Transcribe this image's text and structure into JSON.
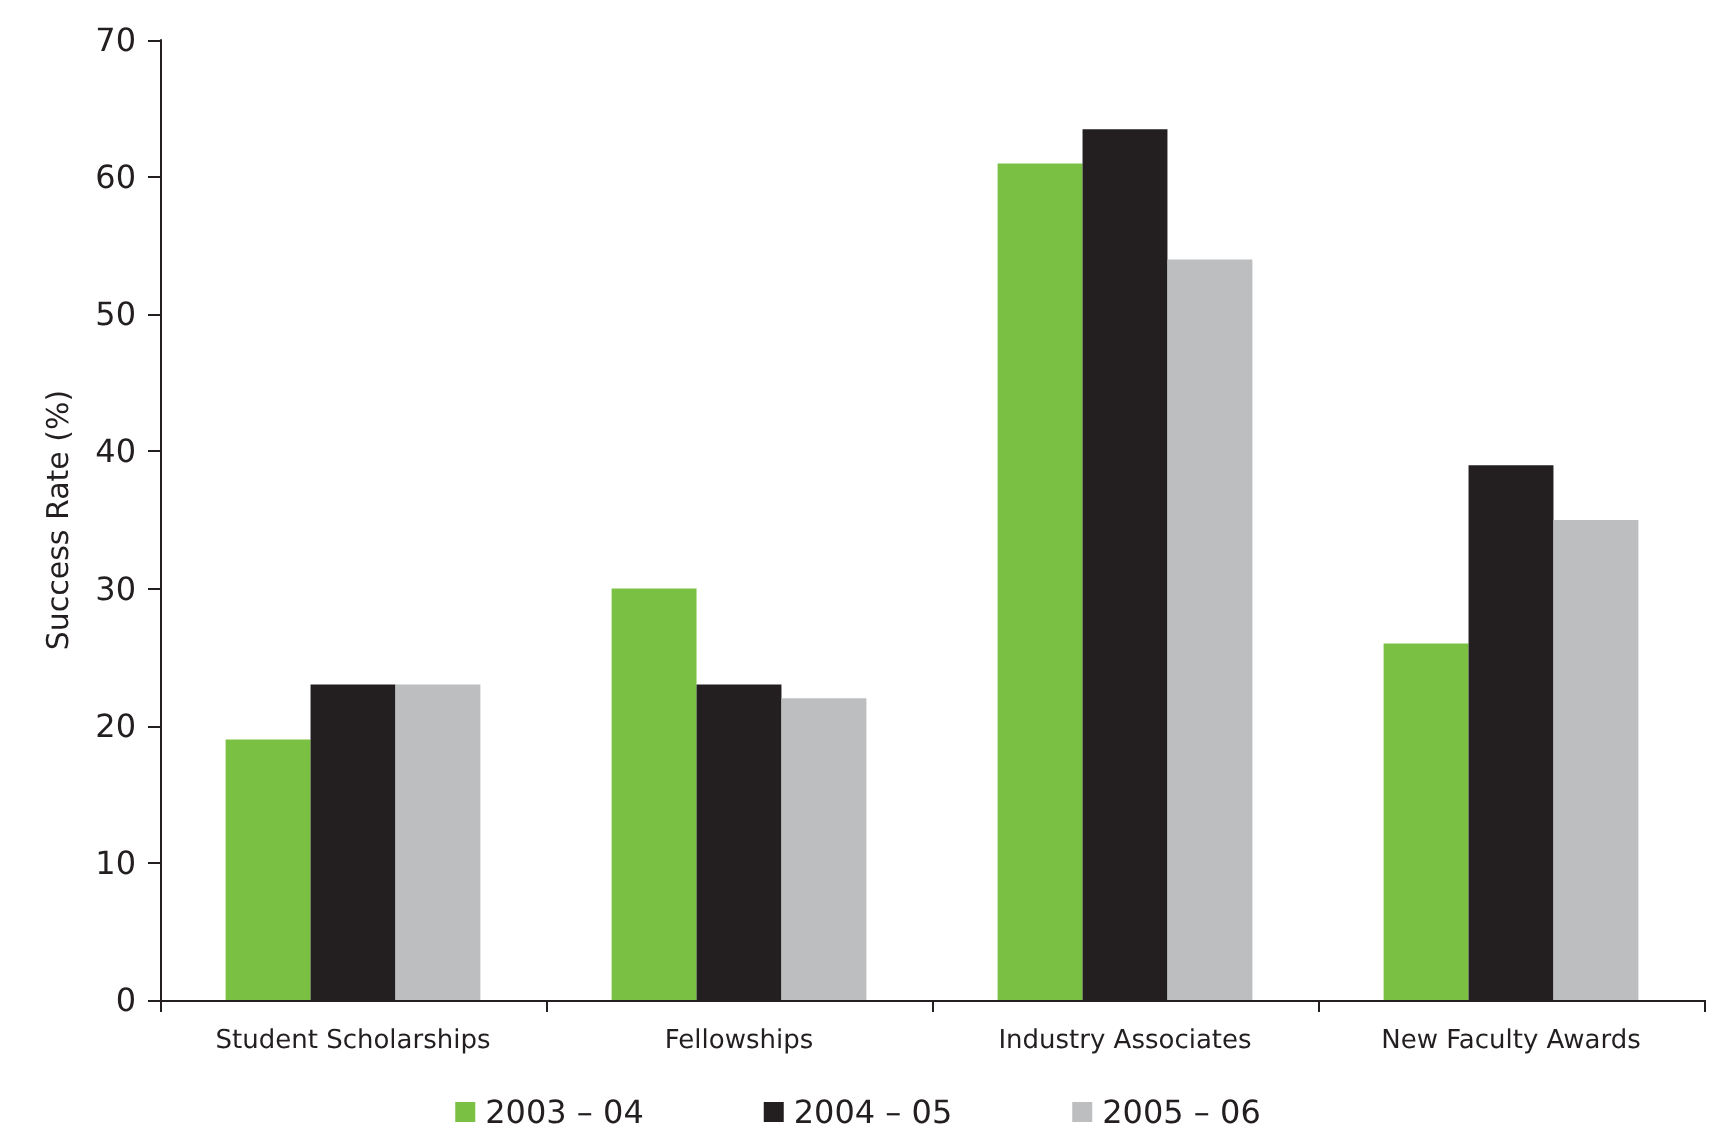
{
  "chart_data": {
    "type": "bar",
    "ylabel": "Success Rate (%)",
    "categories": [
      "Student Scholarships",
      "Fellowships",
      "Industry Associates",
      "New Faculty Awards"
    ],
    "series": [
      {
        "name": "2003 – 04",
        "color": "#7ac143",
        "values": [
          19,
          30,
          61,
          26
        ]
      },
      {
        "name": "2004 – 05",
        "color": "#231f20",
        "values": [
          23,
          23,
          63.5,
          39
        ]
      },
      {
        "name": "2005 – 06",
        "color": "#bcbec0",
        "values": [
          23,
          22,
          54,
          35
        ]
      }
    ],
    "ylim": [
      0,
      70
    ],
    "yticks": [
      0,
      10,
      20,
      30,
      40,
      50,
      60,
      70
    ],
    "grid": false,
    "legend": "bottom"
  }
}
